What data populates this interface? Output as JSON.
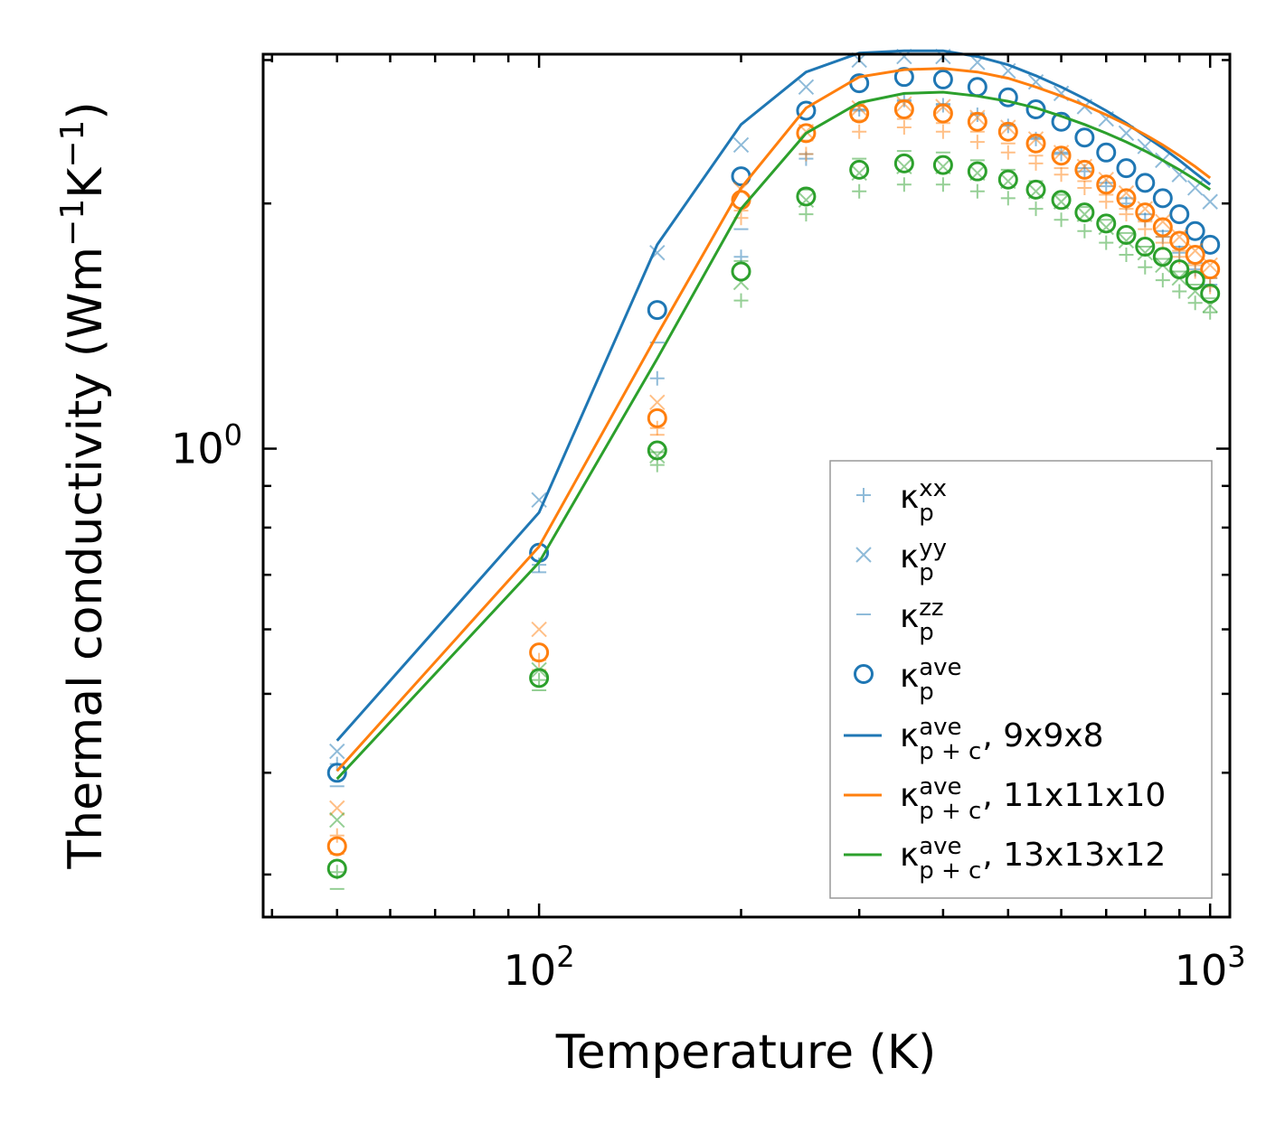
{
  "chart_data": {
    "type": "scatter",
    "title": "",
    "xlabel": "Temperature (K)",
    "ylabel_main": "Thermal conductivity (Wm",
    "ylabel_exp1": "−1",
    "ylabel_mid": "K",
    "ylabel_exp2": "−1",
    "ylabel_end": ")",
    "xscale": "log",
    "yscale": "log",
    "xlim": [
      38.8,
      1070
    ],
    "ylim": [
      0.266,
      3.05
    ],
    "xticks": [
      {
        "value": 100,
        "base": "10",
        "exp": "2"
      },
      {
        "value": 1000,
        "base": "10",
        "exp": "3"
      }
    ],
    "yticks": [
      {
        "value": 1,
        "base": "10",
        "exp": "0"
      }
    ],
    "x": [
      50,
      100,
      150,
      200,
      250,
      300,
      350,
      400,
      450,
      500,
      550,
      600,
      650,
      700,
      750,
      800,
      850,
      900,
      950,
      1000
    ],
    "series": [
      {
        "name": "9x9x8",
        "color": "#1f77b4",
        "xx": [
          0.41,
          0.72,
          1.22,
          1.72,
          2.27,
          2.61,
          2.68,
          2.64,
          2.57,
          2.49,
          2.4,
          2.3,
          2.19,
          2.1,
          2.0,
          1.91,
          1.82,
          1.74,
          1.66,
          1.59
        ],
        "yy": [
          0.425,
          0.865,
          1.74,
          2.36,
          2.78,
          3.0,
          3.03,
          3.03,
          2.98,
          2.91,
          2.82,
          2.73,
          2.63,
          2.54,
          2.44,
          2.35,
          2.26,
          2.17,
          2.09,
          2.01
        ],
        "zz": [
          0.385,
          0.705,
          1.35,
          1.86,
          2.3,
          2.6,
          2.67,
          2.65,
          2.58,
          2.5,
          2.41,
          2.31,
          2.21,
          2.12,
          2.03,
          1.94,
          1.85,
          1.77,
          1.69,
          1.62
        ],
        "ave": [
          0.4,
          0.745,
          1.48,
          2.16,
          2.6,
          2.81,
          2.86,
          2.84,
          2.78,
          2.7,
          2.61,
          2.52,
          2.41,
          2.31,
          2.21,
          2.12,
          2.03,
          1.94,
          1.85,
          1.78
        ],
        "pc": [
          0.438,
          0.835,
          1.78,
          2.5,
          2.9,
          3.06,
          3.08,
          3.08,
          3.03,
          2.96,
          2.87,
          2.78,
          2.69,
          2.6,
          2.51,
          2.42,
          2.34,
          2.26,
          2.18,
          2.11
        ]
      },
      {
        "name": "11x11x10",
        "color": "#ff7f0e",
        "xx": [
          0.335,
          0.55,
          1.06,
          1.92,
          2.3,
          2.45,
          2.48,
          2.45,
          2.38,
          2.31,
          2.24,
          2.17,
          2.09,
          2.01,
          1.94,
          1.86,
          1.79,
          1.72,
          1.65,
          1.58
        ],
        "yy": [
          0.362,
          0.6,
          1.14,
          2.08,
          2.45,
          2.62,
          2.65,
          2.63,
          2.55,
          2.48,
          2.4,
          2.31,
          2.22,
          2.14,
          2.06,
          1.97,
          1.9,
          1.82,
          1.75,
          1.68
        ],
        "zz": [
          0.318,
          0.535,
          1.04,
          1.96,
          2.39,
          2.53,
          2.54,
          2.51,
          2.45,
          2.37,
          2.29,
          2.21,
          2.13,
          2.05,
          1.97,
          1.9,
          1.82,
          1.75,
          1.68,
          1.62
        ],
        "ave": [
          0.325,
          0.562,
          1.09,
          2.02,
          2.44,
          2.58,
          2.61,
          2.58,
          2.52,
          2.45,
          2.37,
          2.29,
          2.2,
          2.11,
          2.03,
          1.95,
          1.87,
          1.8,
          1.73,
          1.66
        ],
        "pc": [
          0.402,
          0.758,
          1.38,
          2.09,
          2.62,
          2.86,
          2.92,
          2.93,
          2.9,
          2.85,
          2.78,
          2.71,
          2.64,
          2.57,
          2.5,
          2.43,
          2.36,
          2.29,
          2.22,
          2.15
        ]
      },
      {
        "name": "13x13x12",
        "color": "#2ca02c",
        "xx": [
          0.302,
          0.52,
          0.955,
          1.52,
          1.94,
          2.07,
          2.11,
          2.11,
          2.07,
          2.03,
          1.97,
          1.91,
          1.85,
          1.79,
          1.73,
          1.67,
          1.61,
          1.56,
          1.51,
          1.47
        ],
        "yy": [
          0.35,
          0.535,
          0.98,
          1.6,
          2.02,
          2.18,
          2.22,
          2.22,
          2.18,
          2.13,
          2.07,
          2.01,
          1.94,
          1.87,
          1.8,
          1.74,
          1.68,
          1.62,
          1.56,
          1.5
        ],
        "zz": [
          0.288,
          0.505,
          0.99,
          1.7,
          2.08,
          2.27,
          2.32,
          2.31,
          2.26,
          2.2,
          2.13,
          2.05,
          1.98,
          1.91,
          1.84,
          1.77,
          1.71,
          1.65,
          1.59,
          1.53
        ],
        "ave": [
          0.305,
          0.523,
          0.995,
          1.65,
          2.04,
          2.2,
          2.24,
          2.23,
          2.19,
          2.14,
          2.08,
          2.02,
          1.95,
          1.89,
          1.83,
          1.77,
          1.72,
          1.66,
          1.61,
          1.55
        ],
        "pc": [
          0.393,
          0.725,
          1.29,
          1.97,
          2.44,
          2.66,
          2.73,
          2.74,
          2.71,
          2.67,
          2.62,
          2.56,
          2.5,
          2.44,
          2.38,
          2.32,
          2.26,
          2.2,
          2.14,
          2.08
        ]
      }
    ],
    "legend": {
      "position": "lower-right",
      "entries": [
        {
          "kind": "plus",
          "sym": "κ",
          "sub": "p",
          "sup": "xx",
          "suffix": ""
        },
        {
          "kind": "cross",
          "sym": "κ",
          "sub": "p",
          "sup": "yy",
          "suffix": ""
        },
        {
          "kind": "dash",
          "sym": "κ",
          "sub": "p",
          "sup": "zz",
          "suffix": ""
        },
        {
          "kind": "circle",
          "sym": "κ",
          "sub": "p",
          "sup": "ave",
          "suffix": ""
        },
        {
          "kind": "line",
          "color": "#1f77b4",
          "sym": "κ",
          "sub": "p + c",
          "sup": "ave",
          "suffix": ", 9x9x8"
        },
        {
          "kind": "line",
          "color": "#ff7f0e",
          "sym": "κ",
          "sub": "p + c",
          "sup": "ave",
          "suffix": ", 11x11x10"
        },
        {
          "kind": "line",
          "color": "#2ca02c",
          "sym": "κ",
          "sub": "p + c",
          "sup": "ave",
          "suffix": ", 13x13x12"
        }
      ],
      "marker_color": "#1f77b4"
    }
  }
}
